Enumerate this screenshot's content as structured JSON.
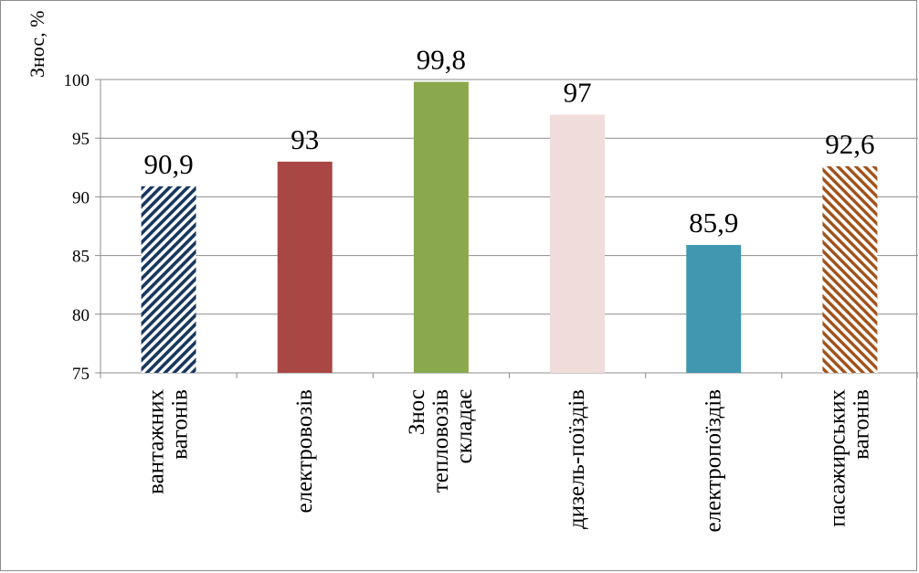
{
  "chart_data": {
    "type": "bar",
    "title": "",
    "xlabel": "",
    "ylabel": "Знос, %",
    "ylim": [
      75,
      100
    ],
    "yticks": [
      75,
      80,
      85,
      90,
      95,
      100
    ],
    "ytick_labels": [
      "75",
      "80",
      "85",
      "90",
      "95",
      "100"
    ],
    "grid": true,
    "legend": "none",
    "categories": [
      [
        "вантажних",
        "вагонів"
      ],
      [
        "електровозів"
      ],
      [
        "Знос",
        "тепловозів",
        "складає"
      ],
      [
        "дизель-поїздів"
      ],
      [
        "електропоїздів"
      ],
      [
        "пасажирських",
        "вагонів"
      ]
    ],
    "values": [
      90.9,
      93,
      99.8,
      97,
      85.9,
      92.6
    ],
    "data_labels": [
      "90,9",
      "93",
      "99,8",
      "97",
      "85,9",
      "92,6"
    ],
    "colors": [
      "#17375e",
      "#a94745",
      "#8aa84c",
      "#f0dcda",
      "#4197b0",
      "#a0521a"
    ],
    "patterns": [
      "diagonal-stripes-down",
      "solid",
      "solid",
      "solid",
      "solid",
      "diagonal-stripes-up"
    ]
  }
}
